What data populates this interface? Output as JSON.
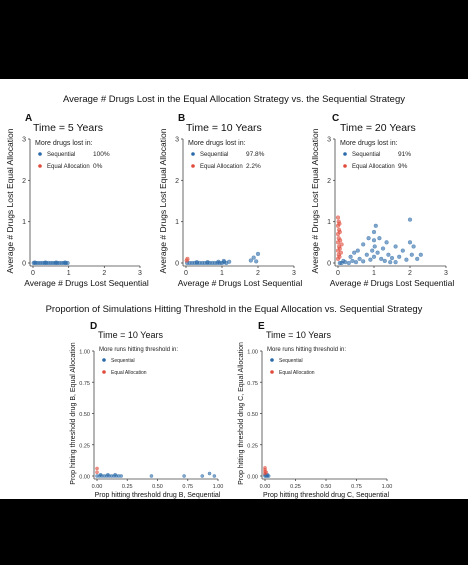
{
  "section1_title": "Average # Drugs Lost in the Equal Allocation Strategy vs. the Sequential Strategy",
  "section2_title": "Proportion of Simulations Hitting Threshold in the Equal Allocation vs. Sequential Strategy",
  "colors": {
    "sequential": "#2b6aa8",
    "equal": "#e04b3c"
  },
  "chart_data": [
    {
      "id": "A",
      "letter": "A",
      "type": "scatter",
      "title": "Time = 5 Years",
      "xlabel": "Average # Drugs Lost Sequential",
      "ylabel": "Average # Drugs Lost Equal Allocation",
      "xlim": [
        0,
        3
      ],
      "ylim": [
        0,
        3
      ],
      "xticks": [
        "0",
        "1",
        "2",
        "3"
      ],
      "yticks": [
        "0",
        "1",
        "2",
        "3"
      ],
      "legend_title": "More drugs lost in:",
      "legend": [
        {
          "name": "Sequential",
          "pct": "100%"
        },
        {
          "name": "Equal Allocation",
          "pct": "0%"
        }
      ],
      "series": [
        {
          "name": "Sequential",
          "points": [
            [
              0.02,
              0
            ],
            [
              0.08,
              0
            ],
            [
              0.14,
              0
            ],
            [
              0.2,
              0
            ],
            [
              0.26,
              0
            ],
            [
              0.32,
              0
            ],
            [
              0.38,
              0
            ],
            [
              0.44,
              0
            ],
            [
              0.5,
              0
            ],
            [
              0.56,
              0
            ],
            [
              0.62,
              0
            ],
            [
              0.68,
              0
            ],
            [
              0.74,
              0
            ],
            [
              0.8,
              0
            ],
            [
              0.86,
              0
            ],
            [
              0.92,
              0
            ],
            [
              0.97,
              0
            ],
            [
              0.05,
              0.01
            ],
            [
              0.35,
              0.01
            ],
            [
              0.65,
              0.01
            ],
            [
              0.9,
              0.01
            ]
          ]
        },
        {
          "name": "Equal Allocation",
          "points": []
        }
      ]
    },
    {
      "id": "B",
      "letter": "B",
      "type": "scatter",
      "title": "Time = 10 Years",
      "xlabel": "Average # Drugs Lost Sequential",
      "ylabel": "Average # Drugs Lost Equal Allocation",
      "xlim": [
        0,
        3
      ],
      "ylim": [
        0,
        3
      ],
      "xticks": [
        "0",
        "1",
        "2",
        "3"
      ],
      "yticks": [
        "0",
        "1",
        "2",
        "3"
      ],
      "legend_title": "More drugs lost in:",
      "legend": [
        {
          "name": "Sequential",
          "pct": "97.8%"
        },
        {
          "name": "Equal Allocation",
          "pct": "2.2%"
        }
      ],
      "series": [
        {
          "name": "Sequential",
          "points": [
            [
              0.03,
              0
            ],
            [
              0.1,
              0
            ],
            [
              0.17,
              0
            ],
            [
              0.24,
              0
            ],
            [
              0.31,
              0
            ],
            [
              0.38,
              0
            ],
            [
              0.45,
              0
            ],
            [
              0.52,
              0
            ],
            [
              0.59,
              0
            ],
            [
              0.66,
              0
            ],
            [
              0.73,
              0
            ],
            [
              0.8,
              0
            ],
            [
              0.87,
              0
            ],
            [
              0.94,
              0
            ],
            [
              1.0,
              0
            ],
            [
              1.06,
              0.02
            ],
            [
              1.12,
              0
            ],
            [
              1.2,
              0.03
            ],
            [
              1.05,
              0.05
            ],
            [
              0.9,
              0.03
            ],
            [
              0.6,
              0.02
            ],
            [
              0.3,
              0.02
            ],
            [
              1.8,
              0.06
            ],
            [
              1.88,
              0.13
            ],
            [
              1.95,
              0.04
            ],
            [
              2.0,
              0.22
            ]
          ]
        },
        {
          "name": "Equal Allocation",
          "points": [
            [
              0.02,
              0.06
            ],
            [
              0.04,
              0.1
            ]
          ]
        }
      ]
    },
    {
      "id": "C",
      "letter": "C",
      "type": "scatter",
      "title": "Time = 20 Years",
      "xlabel": "Average # Drugs Lost Sequential",
      "ylabel": "Average # Drugs Lost Equal Allocation",
      "xlim": [
        0,
        3
      ],
      "ylim": [
        0,
        3
      ],
      "xticks": [
        "0",
        "1",
        "2",
        "3"
      ],
      "yticks": [
        "0",
        "1",
        "2",
        "3"
      ],
      "legend_title": "More drugs lost in:",
      "legend": [
        {
          "name": "Sequential",
          "pct": "91%"
        },
        {
          "name": "Equal Allocation",
          "pct": "9%"
        }
      ],
      "series": [
        {
          "name": "Sequential",
          "points": [
            [
              0.1,
              0
            ],
            [
              0.2,
              0.02
            ],
            [
              0.3,
              0
            ],
            [
              0.4,
              0.05
            ],
            [
              0.5,
              0.02
            ],
            [
              0.6,
              0.1
            ],
            [
              0.7,
              0.04
            ],
            [
              0.8,
              0.2
            ],
            [
              0.9,
              0.08
            ],
            [
              0.95,
              0.3
            ],
            [
              1.0,
              0.15
            ],
            [
              1.0,
              0.55
            ],
            [
              1.0,
              0.75
            ],
            [
              1.02,
              0.4
            ],
            [
              1.05,
              0.9
            ],
            [
              1.1,
              0.25
            ],
            [
              1.15,
              0.6
            ],
            [
              1.2,
              0.1
            ],
            [
              1.25,
              0.35
            ],
            [
              1.3,
              0.05
            ],
            [
              1.4,
              0.2
            ],
            [
              1.5,
              0.12
            ],
            [
              1.6,
              0.02
            ],
            [
              1.7,
              0.15
            ],
            [
              1.8,
              0.3
            ],
            [
              1.9,
              0.08
            ],
            [
              2.0,
              0.5
            ],
            [
              2.0,
              1.05
            ],
            [
              2.05,
              0.2
            ],
            [
              2.1,
              0.4
            ],
            [
              2.2,
              0.1
            ],
            [
              2.3,
              0.2
            ],
            [
              0.55,
              0.3
            ],
            [
              0.7,
              0.45
            ],
            [
              0.85,
              0.6
            ],
            [
              1.35,
              0.5
            ],
            [
              1.6,
              0.4
            ],
            [
              0.35,
              0.15
            ],
            [
              0.15,
              0.05
            ],
            [
              0.45,
              0.25
            ],
            [
              1.45,
              0.02
            ],
            [
              0.05,
              0
            ]
          ]
        },
        {
          "name": "Equal Allocation",
          "points": [
            [
              0.0,
              0.1
            ],
            [
              0.02,
              0.2
            ],
            [
              0.0,
              0.3
            ],
            [
              0.03,
              0.4
            ],
            [
              0.0,
              0.5
            ],
            [
              0.02,
              0.6
            ],
            [
              0.0,
              0.7
            ],
            [
              0.03,
              0.8
            ],
            [
              0.0,
              0.9
            ],
            [
              0.02,
              1.0
            ],
            [
              0.0,
              1.1
            ],
            [
              0.04,
              0.15
            ],
            [
              0.05,
              0.35
            ],
            [
              0.06,
              0.55
            ],
            [
              0.05,
              0.75
            ],
            [
              0.04,
              0.95
            ],
            [
              0.08,
              0.25
            ],
            [
              0.1,
              0.45
            ]
          ]
        }
      ]
    },
    {
      "id": "D",
      "letter": "D",
      "type": "scatter",
      "title": "Time = 10 Years",
      "xlabel": "Prop hitting threshold drug B, Sequential",
      "ylabel": "Prop hitting threshold drug B, Equal Allocation",
      "xlim": [
        0,
        1
      ],
      "ylim": [
        0,
        1
      ],
      "xticks": [
        "0.00",
        "0.25",
        "0.50",
        "0.75",
        "1.00"
      ],
      "yticks": [
        "0.00",
        "0.25",
        "0.50",
        "0.75",
        "1.00"
      ],
      "legend_title": "More runs hitting threshold in:",
      "legend": [
        {
          "name": "Sequential",
          "pct": ""
        },
        {
          "name": "Equal Allocation",
          "pct": ""
        }
      ],
      "series": [
        {
          "name": "Sequential",
          "points": [
            [
              0.0,
              0.0
            ],
            [
              0.02,
              0.0
            ],
            [
              0.04,
              0.0
            ],
            [
              0.06,
              0.0
            ],
            [
              0.08,
              0.0
            ],
            [
              0.1,
              0.0
            ],
            [
              0.12,
              0.0
            ],
            [
              0.14,
              0.0
            ],
            [
              0.16,
              0.0
            ],
            [
              0.18,
              0.0
            ],
            [
              0.2,
              0.0
            ],
            [
              0.03,
              0.01
            ],
            [
              0.09,
              0.01
            ],
            [
              0.15,
              0.01
            ],
            [
              0.45,
              0.0
            ],
            [
              0.72,
              0.0
            ],
            [
              0.87,
              0.0
            ],
            [
              0.93,
              0.02
            ],
            [
              0.97,
              0.0
            ]
          ]
        },
        {
          "name": "Equal Allocation",
          "points": [
            [
              0.0,
              0.03
            ],
            [
              0.0,
              0.06
            ]
          ]
        }
      ]
    },
    {
      "id": "E",
      "letter": "E",
      "type": "scatter",
      "title": "Time = 10 Years",
      "xlabel": "Prop hitting threshold drug C, Sequential",
      "ylabel": "Prop hitting threshold drug C, Equal Allocation",
      "xlim": [
        0,
        1
      ],
      "ylim": [
        0,
        1
      ],
      "xticks": [
        "0.00",
        "0.25",
        "0.50",
        "0.75",
        "1.00"
      ],
      "yticks": [
        "0.00",
        "0.25",
        "0.50",
        "0.75",
        "1.00"
      ],
      "legend_title": "More runs hitting threshold in:",
      "legend": [
        {
          "name": "Sequential",
          "pct": ""
        },
        {
          "name": "Equal Allocation",
          "pct": ""
        }
      ],
      "series": [
        {
          "name": "Sequential",
          "points": [
            [
              0.0,
              0.0
            ],
            [
              0.01,
              0.0
            ],
            [
              0.02,
              0.0
            ],
            [
              0.03,
              0.0
            ],
            [
              0.0,
              0.01
            ],
            [
              0.02,
              0.01
            ]
          ]
        },
        {
          "name": "Equal Allocation",
          "points": [
            [
              0.0,
              0.02
            ],
            [
              0.0,
              0.035
            ],
            [
              0.0,
              0.05
            ],
            [
              0.0,
              0.065
            ],
            [
              0.01,
              0.03
            ]
          ]
        }
      ]
    }
  ]
}
